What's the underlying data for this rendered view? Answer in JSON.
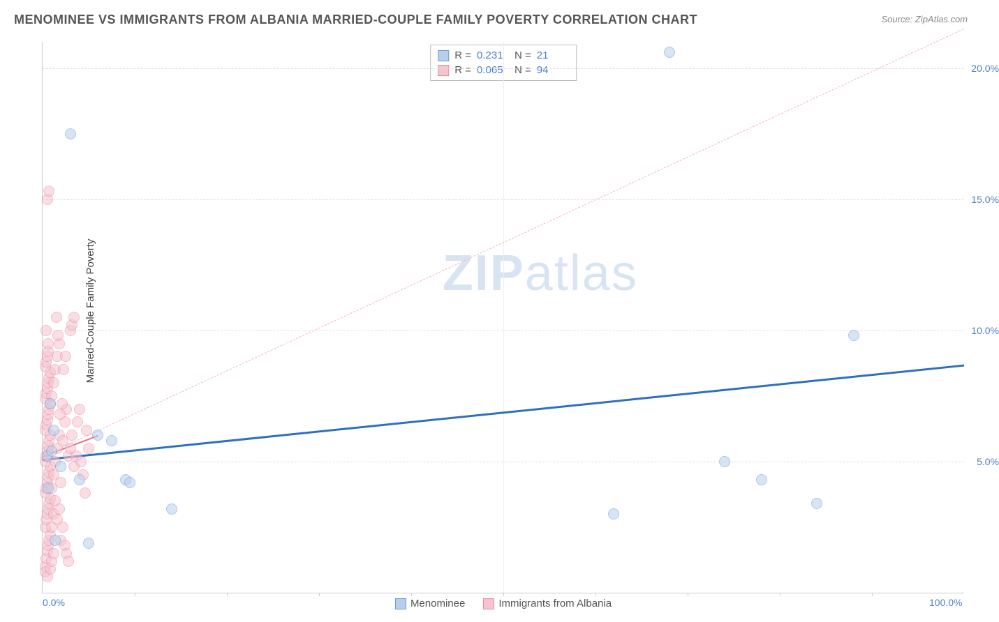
{
  "title": "MENOMINEE VS IMMIGRANTS FROM ALBANIA MARRIED-COUPLE FAMILY POVERTY CORRELATION CHART",
  "source": "Source: ZipAtlas.com",
  "y_axis_label": "Married-Couple Family Poverty",
  "watermark_bold": "ZIP",
  "watermark_rest": "atlas",
  "chart": {
    "type": "scatter",
    "xlim": [
      0,
      100
    ],
    "ylim": [
      0,
      21
    ],
    "x_ticks": [
      0,
      100
    ],
    "x_tick_labels": [
      "0.0%",
      "100.0%"
    ],
    "x_tick_minor": [
      10,
      20,
      30,
      40,
      50,
      60,
      70,
      80,
      90
    ],
    "y_ticks": [
      5,
      10,
      15,
      20
    ],
    "y_tick_labels": [
      "5.0%",
      "10.0%",
      "15.0%",
      "20.0%"
    ],
    "background_color": "#ffffff",
    "grid_color": "#dddddd",
    "axis_color": "#cccccc",
    "tick_label_color": "#4a7ec9",
    "tick_label_fontsize": 14,
    "title_fontsize": 18,
    "title_color": "#555555",
    "point_radius": 8,
    "point_opacity": 0.55,
    "series": [
      {
        "name": "Menominee",
        "fill": "#b8cfec",
        "stroke": "#6a9bd8",
        "R": "0.231",
        "N": "21",
        "trend": {
          "x1": 0,
          "y1": 5.1,
          "x2": 100,
          "y2": 8.7,
          "width": 3,
          "dash": "none",
          "color": "#2f6fc0"
        },
        "points": [
          [
            0.5,
            5.2
          ],
          [
            0.8,
            7.2
          ],
          [
            1.0,
            5.4
          ],
          [
            1.2,
            6.2
          ],
          [
            1.4,
            2.0
          ],
          [
            2.0,
            4.8
          ],
          [
            3.0,
            17.5
          ],
          [
            4.0,
            4.3
          ],
          [
            5.0,
            1.9
          ],
          [
            6.0,
            6.0
          ],
          [
            7.5,
            5.8
          ],
          [
            9.0,
            4.3
          ],
          [
            9.5,
            4.2
          ],
          [
            14.0,
            3.2
          ],
          [
            62.0,
            3.0
          ],
          [
            68.0,
            20.6
          ],
          [
            74.0,
            5.0
          ],
          [
            78.0,
            4.3
          ],
          [
            84.0,
            3.4
          ],
          [
            88.0,
            9.8
          ],
          [
            0.6,
            4.0
          ]
        ]
      },
      {
        "name": "Immigrants from Albania",
        "fill": "#f5c5cf",
        "stroke": "#e98aa0",
        "R": "0.065",
        "N": "94",
        "trend": {
          "x1": 0,
          "y1": 5.2,
          "x2": 6,
          "y2": 6.0,
          "width": 2,
          "dash": "none",
          "color": "#e26f8c"
        },
        "trend_ext": {
          "x1": 0,
          "y1": 5.2,
          "x2": 100,
          "y2": 21.5,
          "width": 1,
          "dash": "6,6",
          "color": "#f0b6c3"
        },
        "points": [
          [
            0.3,
            1.0
          ],
          [
            0.4,
            1.3
          ],
          [
            0.5,
            1.6
          ],
          [
            0.6,
            1.8
          ],
          [
            0.7,
            2.0
          ],
          [
            0.8,
            2.2
          ],
          [
            0.3,
            2.5
          ],
          [
            0.4,
            2.8
          ],
          [
            0.5,
            3.0
          ],
          [
            0.6,
            3.2
          ],
          [
            0.7,
            3.4
          ],
          [
            0.8,
            3.6
          ],
          [
            0.3,
            3.8
          ],
          [
            0.4,
            4.0
          ],
          [
            0.5,
            4.2
          ],
          [
            0.6,
            4.4
          ],
          [
            0.7,
            4.6
          ],
          [
            0.8,
            4.8
          ],
          [
            0.3,
            5.0
          ],
          [
            0.4,
            5.2
          ],
          [
            0.5,
            5.4
          ],
          [
            0.6,
            5.6
          ],
          [
            0.7,
            5.8
          ],
          [
            0.8,
            6.0
          ],
          [
            0.3,
            6.2
          ],
          [
            0.4,
            6.4
          ],
          [
            0.5,
            6.6
          ],
          [
            0.6,
            6.8
          ],
          [
            0.7,
            7.0
          ],
          [
            0.8,
            7.2
          ],
          [
            0.3,
            7.4
          ],
          [
            0.4,
            7.6
          ],
          [
            0.5,
            7.8
          ],
          [
            0.6,
            8.0
          ],
          [
            0.7,
            8.2
          ],
          [
            0.8,
            8.4
          ],
          [
            0.3,
            8.6
          ],
          [
            0.4,
            8.8
          ],
          [
            0.5,
            9.0
          ],
          [
            0.6,
            9.2
          ],
          [
            1.0,
            4.0
          ],
          [
            1.2,
            4.5
          ],
          [
            1.4,
            5.0
          ],
          [
            1.6,
            5.5
          ],
          [
            1.8,
            6.0
          ],
          [
            2.0,
            4.2
          ],
          [
            2.2,
            5.8
          ],
          [
            2.4,
            6.5
          ],
          [
            2.6,
            7.0
          ],
          [
            2.8,
            5.2
          ],
          [
            1.0,
            2.5
          ],
          [
            1.2,
            3.0
          ],
          [
            1.4,
            3.5
          ],
          [
            1.6,
            2.8
          ],
          [
            1.8,
            3.2
          ],
          [
            2.0,
            2.0
          ],
          [
            2.2,
            2.5
          ],
          [
            2.4,
            1.8
          ],
          [
            2.6,
            1.5
          ],
          [
            2.8,
            1.2
          ],
          [
            1.0,
            7.5
          ],
          [
            1.2,
            8.0
          ],
          [
            1.4,
            8.5
          ],
          [
            1.6,
            9.0
          ],
          [
            1.8,
            9.5
          ],
          [
            3.0,
            10.0
          ],
          [
            3.2,
            10.2
          ],
          [
            3.4,
            10.5
          ],
          [
            0.5,
            15.0
          ],
          [
            0.7,
            15.3
          ],
          [
            0.3,
            0.8
          ],
          [
            0.5,
            0.6
          ],
          [
            0.8,
            0.9
          ],
          [
            1.0,
            1.2
          ],
          [
            1.2,
            1.5
          ],
          [
            3.0,
            5.5
          ],
          [
            3.2,
            6.0
          ],
          [
            3.4,
            4.8
          ],
          [
            3.6,
            5.2
          ],
          [
            3.8,
            6.5
          ],
          [
            4.0,
            7.0
          ],
          [
            4.2,
            5.0
          ],
          [
            4.4,
            4.5
          ],
          [
            4.6,
            3.8
          ],
          [
            4.8,
            6.2
          ],
          [
            5.0,
            5.5
          ],
          [
            1.5,
            10.5
          ],
          [
            1.7,
            9.8
          ],
          [
            1.9,
            6.8
          ],
          [
            2.1,
            7.2
          ],
          [
            2.3,
            8.5
          ],
          [
            2.5,
            9.0
          ],
          [
            0.4,
            10.0
          ],
          [
            0.6,
            9.5
          ]
        ]
      }
    ]
  },
  "legend": {
    "series1_label": "Menominee",
    "series2_label": "Immigrants from Albania"
  }
}
